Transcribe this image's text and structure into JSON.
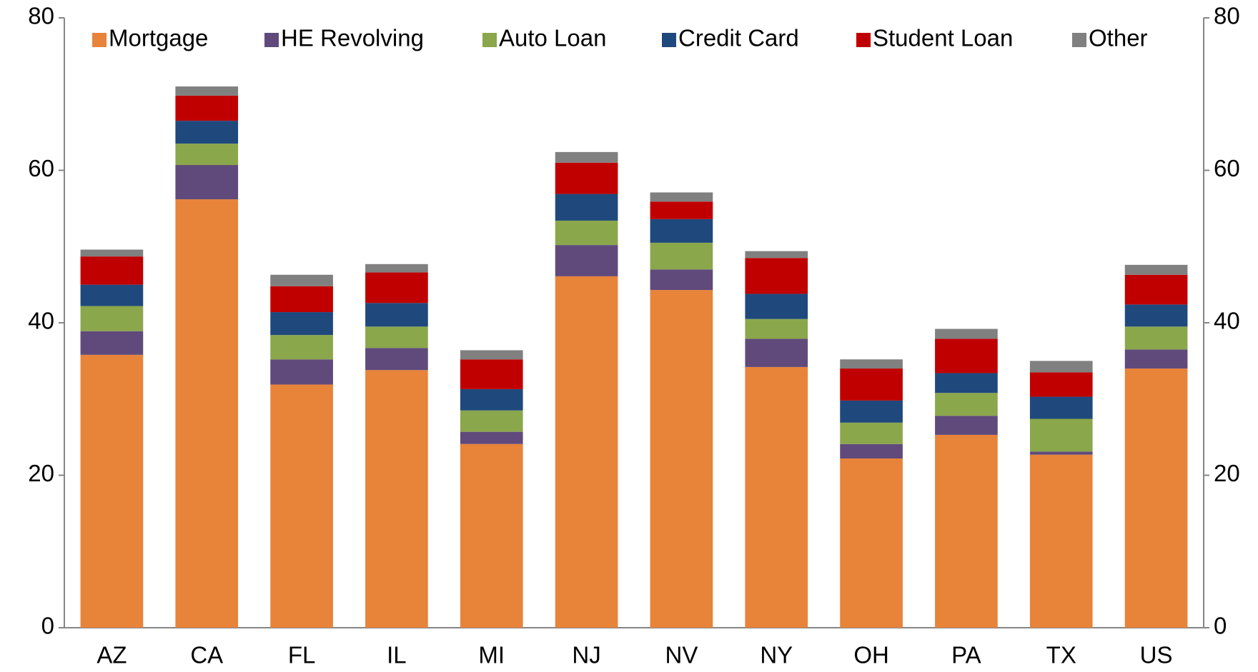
{
  "chart_data": {
    "type": "stacked_bar",
    "categories": [
      "AZ",
      "CA",
      "FL",
      "IL",
      "MI",
      "NJ",
      "NV",
      "NY",
      "OH",
      "PA",
      "TX",
      "US"
    ],
    "series": [
      {
        "name": "Mortgage",
        "color": "#e8833a",
        "values": [
          35.8,
          56.2,
          31.9,
          33.8,
          24.1,
          46.1,
          44.3,
          34.2,
          22.2,
          25.3,
          22.7,
          34.0
        ]
      },
      {
        "name": "HE Revolving",
        "color": "#604a7b",
        "values": [
          3.1,
          4.5,
          3.3,
          2.9,
          1.6,
          4.1,
          2.7,
          3.7,
          1.9,
          2.5,
          0.4,
          2.5
        ]
      },
      {
        "name": "Auto Loan",
        "color": "#8ba74b",
        "values": [
          3.3,
          2.8,
          3.2,
          2.8,
          2.8,
          3.2,
          3.5,
          2.6,
          2.8,
          3.0,
          4.3,
          3.0
        ]
      },
      {
        "name": "Credit Card",
        "color": "#1f497d",
        "values": [
          2.8,
          3.0,
          3.0,
          3.1,
          2.8,
          3.5,
          3.1,
          3.3,
          2.9,
          2.6,
          2.9,
          2.9
        ]
      },
      {
        "name": "Student Loan",
        "color": "#c00000",
        "values": [
          3.7,
          3.3,
          3.4,
          4.0,
          3.9,
          4.1,
          2.3,
          4.7,
          4.2,
          4.5,
          3.2,
          3.9
        ]
      },
      {
        "name": "Other",
        "color": "#808080",
        "values": [
          0.9,
          1.2,
          1.5,
          1.1,
          1.2,
          1.4,
          1.2,
          0.9,
          1.2,
          1.3,
          1.5,
          1.3
        ]
      }
    ],
    "ylim": [
      0,
      80
    ],
    "yticks": [
      0,
      20,
      40,
      60,
      80
    ],
    "y2lim": [
      0,
      80
    ],
    "y2ticks": [
      0,
      20,
      40,
      60,
      80
    ],
    "legend": "top",
    "grid": false
  }
}
